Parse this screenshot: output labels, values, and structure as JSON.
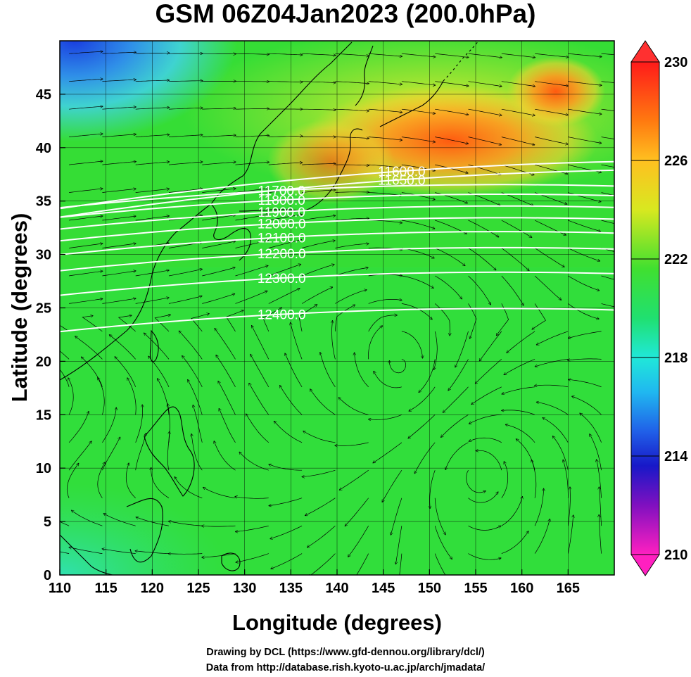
{
  "title": "GSM 06Z04Jan2023 (200.0hPa)",
  "chart_data": {
    "type": "heatmap",
    "variable_level": "200.0hPa",
    "xlabel": "Longitude (degrees)",
    "ylabel": "Latitude  (degrees)",
    "xlim": [
      110,
      170
    ],
    "ylim": [
      0,
      50
    ],
    "x_ticks": [
      "110",
      "115",
      "120",
      "125",
      "130",
      "135",
      "140",
      "145",
      "150",
      "155",
      "160",
      "165"
    ],
    "y_ticks": [
      "0",
      "5",
      "10",
      "15",
      "20",
      "25",
      "30",
      "35",
      "40",
      "45"
    ],
    "grid": true,
    "colorbar": {
      "min": 210,
      "max": 230,
      "tick_labels": [
        "230",
        "226",
        "222",
        "218",
        "214",
        "210"
      ],
      "position": "right"
    },
    "contour_labels": [
      {
        "text": "11600.0",
        "lon": 147,
        "lat": 37.8
      },
      {
        "text": "11650.0",
        "lon": 147,
        "lat": 37.0
      },
      {
        "text": "11700.0",
        "lon": 134,
        "lat": 36.0
      },
      {
        "text": "11800.0",
        "lon": 134,
        "lat": 35.1
      },
      {
        "text": "11900.0",
        "lon": 134,
        "lat": 34.0
      },
      {
        "text": "12000.0",
        "lon": 134,
        "lat": 32.9
      },
      {
        "text": "12100.0",
        "lon": 134,
        "lat": 31.6
      },
      {
        "text": "12200.0",
        "lon": 134,
        "lat": 30.1
      },
      {
        "text": "12300.0",
        "lon": 134,
        "lat": 27.8
      },
      {
        "text": "12400.0",
        "lon": 134,
        "lat": 24.4
      }
    ],
    "streamline_features": [
      {
        "kind": "anticyclone-center",
        "lon": 147,
        "lat": 19.5
      },
      {
        "kind": "vortex-center",
        "lon": 155,
        "lat": 9.5
      }
    ]
  },
  "credits": {
    "line1": "Drawing by DCL (https://www.gfd-dennou.org/library/dcl/)",
    "line2": "Data from http://database.rish.kyoto-u.ac.jp/arch/jmadata/"
  }
}
